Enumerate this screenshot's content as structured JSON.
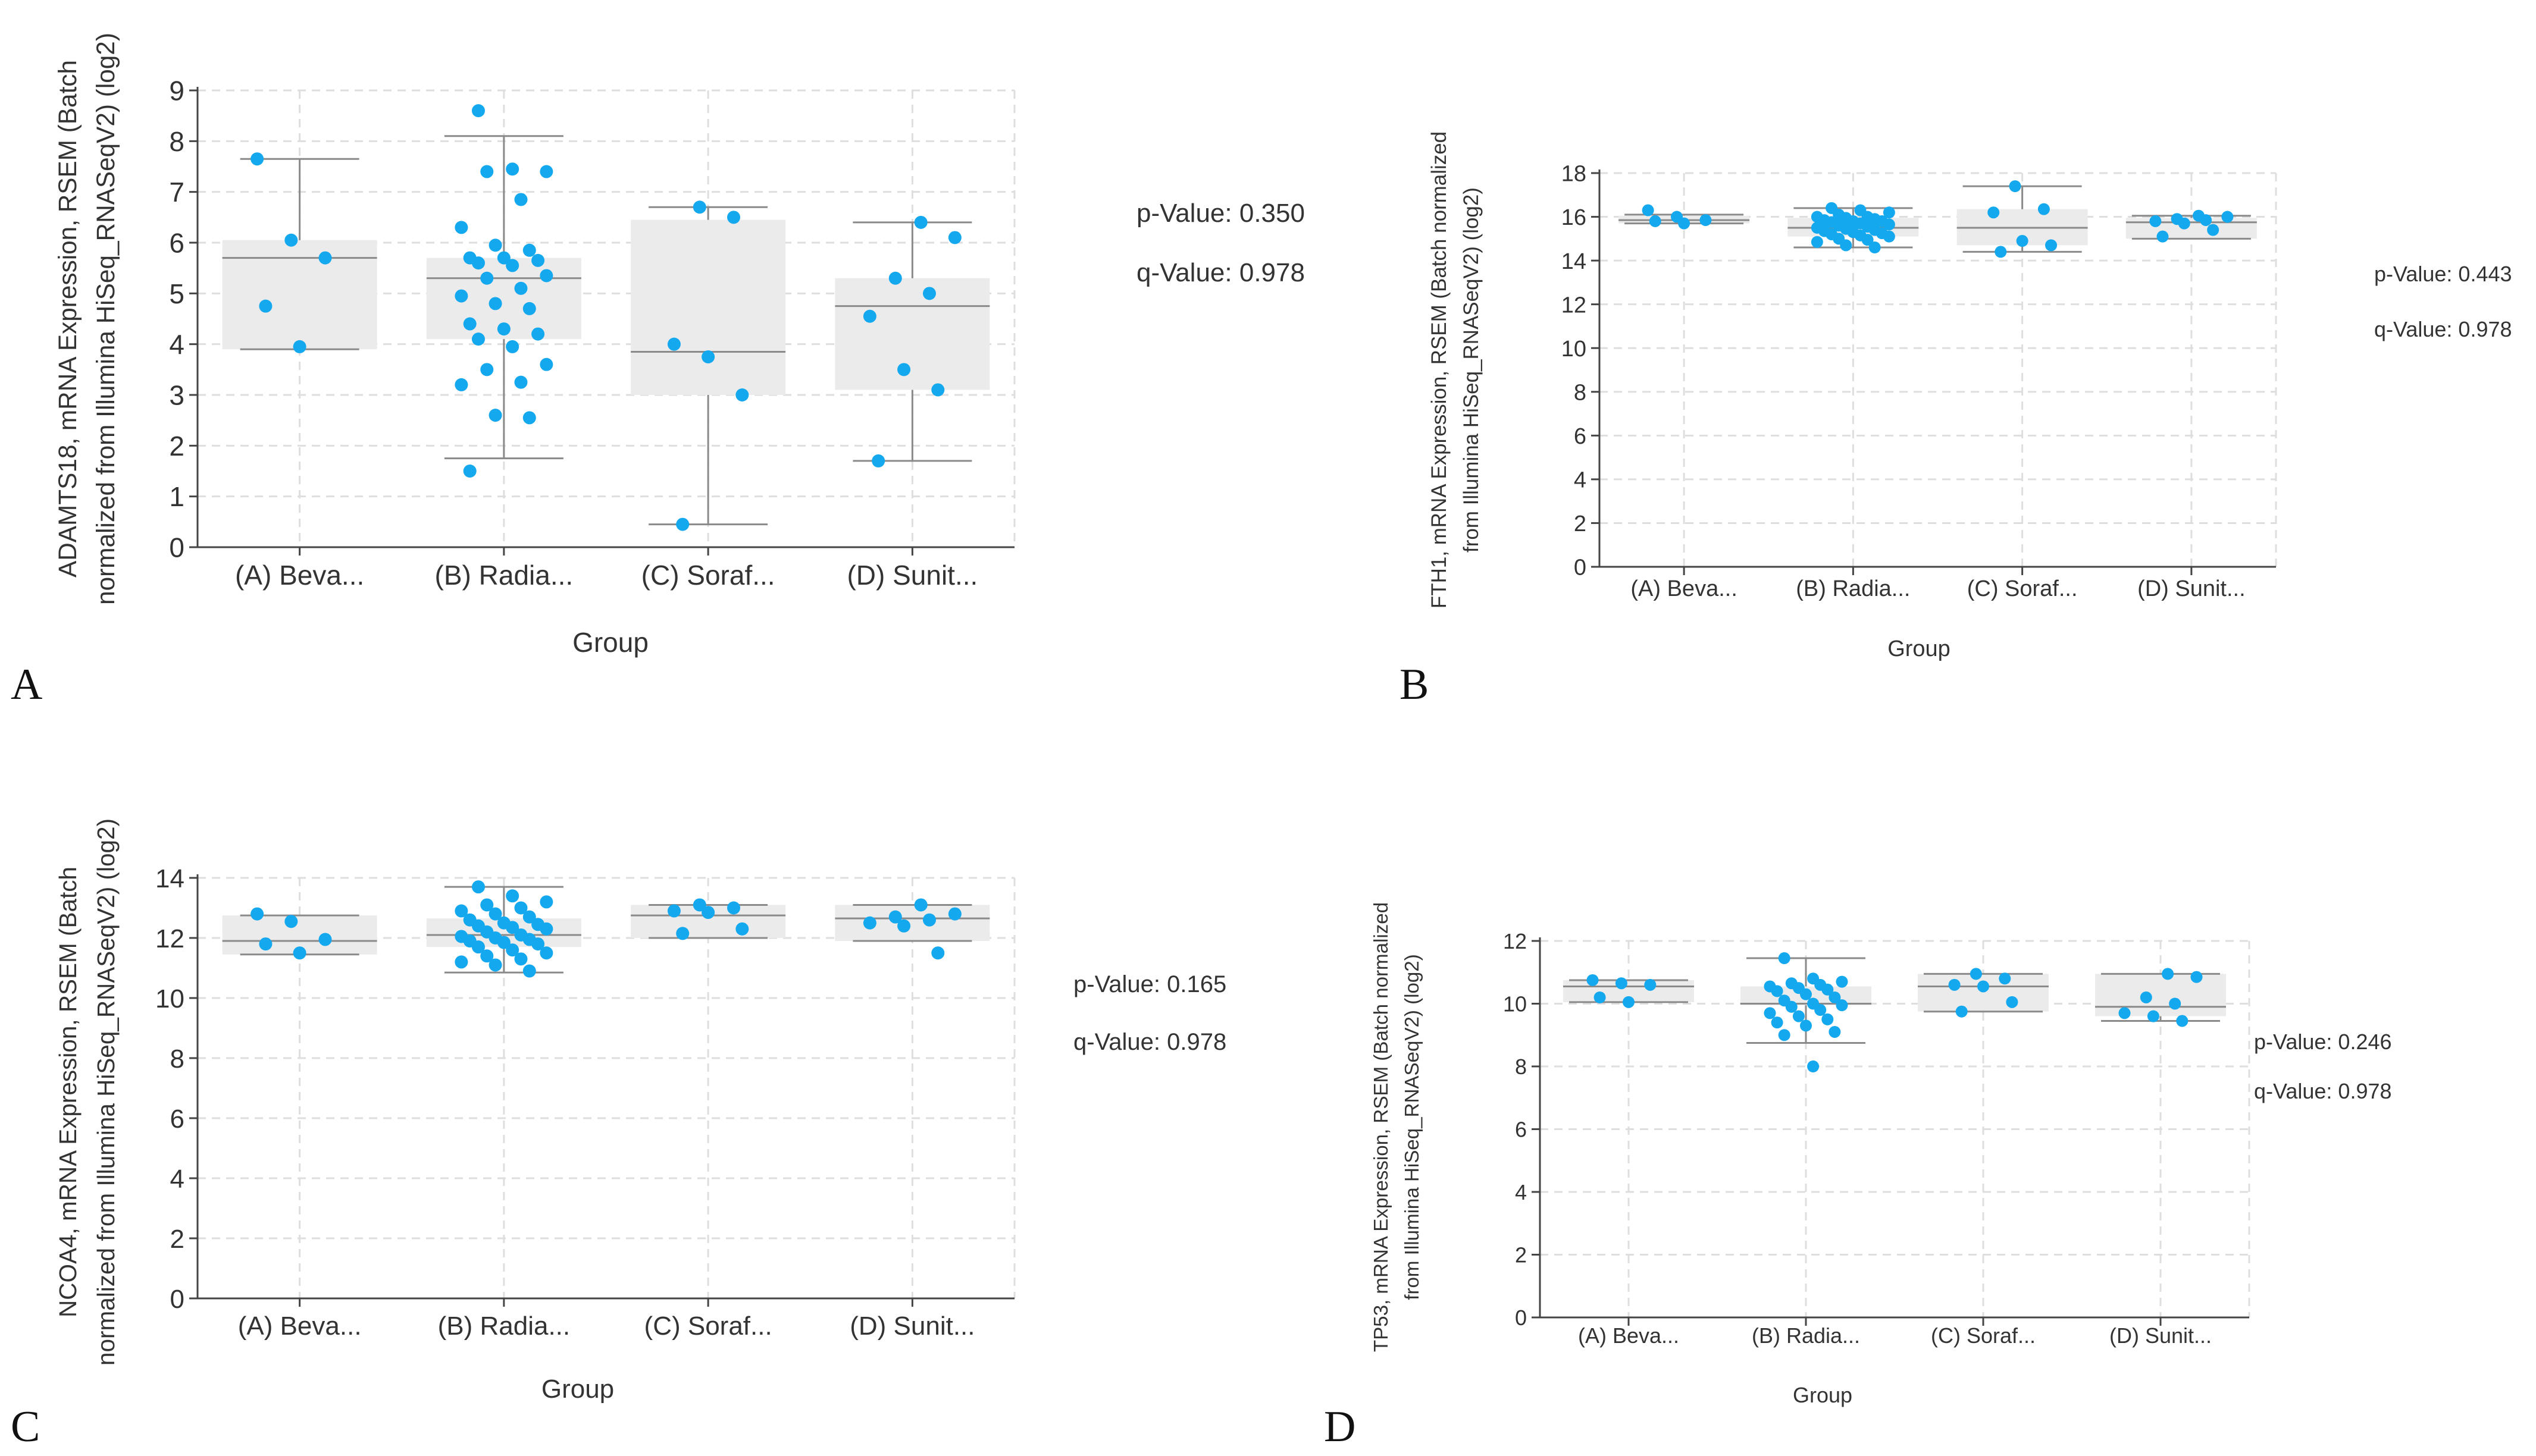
{
  "figure": {
    "colors": {
      "point": "#14a8ef",
      "box_fill": "#ebebeb",
      "whisker": "#8a8a8a",
      "grid": "#dedede",
      "axis": "#444444",
      "text": "#333333"
    }
  },
  "chart_data": [
    {
      "type": "box",
      "panel": "A",
      "xlabel": "Group",
      "ylabel_lines": [
        "ADAMTS18, mRNA Expression, RSEM (Batch",
        "normalized from Illumina HiSeq_RNASeqV2) (log2)"
      ],
      "ylim": [
        0,
        9
      ],
      "yticks": [
        0,
        1,
        2,
        3,
        4,
        5,
        6,
        7,
        8,
        9
      ],
      "categories": [
        "(A) Beva...",
        "(B) Radia...",
        "(C) Soraf...",
        "(D) Sunit..."
      ],
      "stats": {
        "p_value": "p-Value: 0.350",
        "q_value": "q-Value: 0.978"
      },
      "boxes": [
        {
          "min": 3.9,
          "q1": 3.9,
          "median": 5.7,
          "q3": 6.05,
          "max": 7.65
        },
        {
          "min": 1.75,
          "q1": 4.1,
          "median": 5.3,
          "q3": 5.7,
          "max": 8.1
        },
        {
          "min": 0.45,
          "q1": 3.0,
          "median": 3.85,
          "q3": 6.45,
          "max": 6.7
        },
        {
          "min": 1.7,
          "q1": 3.1,
          "median": 4.75,
          "q3": 5.3,
          "max": 6.4
        }
      ],
      "points": [
        [
          7.65,
          6.05,
          5.7,
          4.75,
          3.95
        ],
        [
          8.6,
          7.45,
          7.4,
          7.4,
          6.85,
          6.3,
          5.95,
          5.85,
          5.7,
          5.7,
          5.65,
          5.6,
          5.55,
          5.35,
          5.3,
          5.1,
          4.95,
          4.8,
          4.7,
          4.4,
          4.3,
          4.2,
          4.1,
          3.95,
          3.6,
          3.5,
          3.25,
          3.2,
          2.6,
          2.55,
          1.5
        ],
        [
          6.7,
          6.5,
          4.0,
          3.75,
          3.0,
          0.45
        ],
        [
          6.4,
          6.1,
          5.3,
          5.0,
          4.55,
          3.5,
          3.1,
          1.7
        ]
      ]
    },
    {
      "type": "box",
      "panel": "B",
      "xlabel": "Group",
      "ylabel_lines": [
        "FTH1, mRNA Expression, RSEM (Batch normalized",
        "from Illumina HiSeq_RNASeqV2) (log2)"
      ],
      "ylim": [
        0,
        18
      ],
      "yticks": [
        0,
        2,
        4,
        6,
        8,
        10,
        12,
        14,
        16,
        18
      ],
      "categories": [
        "(A) Beva...",
        "(B) Radia...",
        "(C) Soraf...",
        "(D) Sunit..."
      ],
      "stats": {
        "p_value": "p-Value: 0.443",
        "q_value": "q-Value: 0.978"
      },
      "boxes": [
        {
          "min": 15.7,
          "q1": 15.7,
          "median": 15.85,
          "q3": 16.05,
          "max": 16.1
        },
        {
          "min": 14.6,
          "q1": 15.1,
          "median": 15.5,
          "q3": 15.95,
          "max": 16.4
        },
        {
          "min": 14.4,
          "q1": 14.7,
          "median": 15.5,
          "q3": 16.35,
          "max": 17.4
        },
        {
          "min": 15.0,
          "q1": 15.0,
          "median": 15.75,
          "q3": 15.95,
          "max": 16.05
        }
      ],
      "points": [
        [
          16.3,
          16.0,
          15.85,
          15.8,
          15.7
        ],
        [
          16.4,
          16.3,
          16.2,
          16.1,
          16.0,
          16.0,
          15.95,
          15.9,
          15.85,
          15.8,
          15.8,
          15.75,
          15.7,
          15.65,
          15.6,
          15.55,
          15.5,
          15.45,
          15.4,
          15.35,
          15.3,
          15.25,
          15.2,
          15.15,
          15.1,
          15.0,
          14.95,
          14.85,
          14.7,
          14.6
        ],
        [
          17.4,
          16.35,
          16.2,
          14.9,
          14.7,
          14.4
        ],
        [
          16.05,
          16.0,
          15.9,
          15.85,
          15.8,
          15.7,
          15.4,
          15.1
        ]
      ]
    },
    {
      "type": "box",
      "panel": "C",
      "xlabel": "Group",
      "ylabel_lines": [
        "NCOA4, mRNA Expression, RSEM (Batch",
        "normalized from Illumina HiSeq_RNASeqV2) (log2)"
      ],
      "ylim": [
        0,
        14
      ],
      "yticks": [
        0,
        2,
        4,
        6,
        8,
        10,
        12,
        14
      ],
      "categories": [
        "(A) Beva...",
        "(B) Radia...",
        "(C) Soraf...",
        "(D) Sunit..."
      ],
      "stats": {
        "p_value": "p-Value: 0.165",
        "q_value": "q-Value: 0.978"
      },
      "boxes": [
        {
          "min": 11.45,
          "q1": 11.45,
          "median": 11.9,
          "q3": 12.75,
          "max": 12.75
        },
        {
          "min": 10.85,
          "q1": 11.7,
          "median": 12.1,
          "q3": 12.65,
          "max": 13.7
        },
        {
          "min": 12.0,
          "q1": 12.0,
          "median": 12.75,
          "q3": 13.1,
          "max": 13.1
        },
        {
          "min": 11.9,
          "q1": 11.9,
          "median": 12.65,
          "q3": 13.1,
          "max": 13.1
        }
      ],
      "points": [
        [
          12.8,
          12.55,
          11.95,
          11.8,
          11.5
        ],
        [
          13.7,
          13.4,
          13.2,
          13.1,
          13.0,
          12.9,
          12.8,
          12.7,
          12.6,
          12.5,
          12.45,
          12.4,
          12.35,
          12.3,
          12.2,
          12.1,
          12.05,
          12.0,
          11.95,
          11.9,
          11.85,
          11.8,
          11.7,
          11.6,
          11.5,
          11.4,
          11.3,
          11.2,
          11.1,
          10.9
        ],
        [
          13.1,
          13.0,
          12.9,
          12.85,
          12.3,
          12.15
        ],
        [
          13.1,
          12.8,
          12.7,
          12.6,
          12.5,
          12.4,
          11.5
        ]
      ]
    },
    {
      "type": "box",
      "panel": "D",
      "xlabel": "Group",
      "ylabel_lines": [
        "TP53, mRNA Expression, RSEM (Batch normalized",
        "from Illumina HiSeq_RNASeqV2) (log2)"
      ],
      "ylim": [
        0,
        12
      ],
      "yticks": [
        0,
        2,
        4,
        6,
        8,
        10,
        12
      ],
      "categories": [
        "(A) Beva...",
        "(B) Radia...",
        "(C) Soraf...",
        "(D) Sunit..."
      ],
      "stats": {
        "p_value": "p-Value: 0.246",
        "q_value": "q-Value: 0.978"
      },
      "boxes": [
        {
          "min": 10.05,
          "q1": 10.05,
          "median": 10.55,
          "q3": 10.75,
          "max": 10.75
        },
        {
          "min": 8.75,
          "q1": 9.95,
          "median": 10.0,
          "q3": 10.55,
          "max": 11.45
        },
        {
          "min": 9.75,
          "q1": 9.75,
          "median": 10.55,
          "q3": 10.95,
          "max": 10.95
        },
        {
          "min": 9.45,
          "q1": 9.6,
          "median": 9.9,
          "q3": 10.95,
          "max": 10.95
        }
      ],
      "points": [
        [
          10.75,
          10.65,
          10.6,
          10.2,
          10.05
        ],
        [
          11.45,
          10.8,
          10.7,
          10.65,
          10.6,
          10.55,
          10.5,
          10.45,
          10.4,
          10.3,
          10.2,
          10.1,
          10.0,
          9.95,
          9.9,
          9.8,
          9.7,
          9.6,
          9.5,
          9.4,
          9.3,
          9.1,
          9.0,
          8.0
        ],
        [
          10.95,
          10.8,
          10.6,
          10.55,
          10.05,
          9.75
        ],
        [
          10.95,
          10.85,
          10.2,
          10.0,
          9.7,
          9.6,
          9.45
        ]
      ]
    }
  ]
}
